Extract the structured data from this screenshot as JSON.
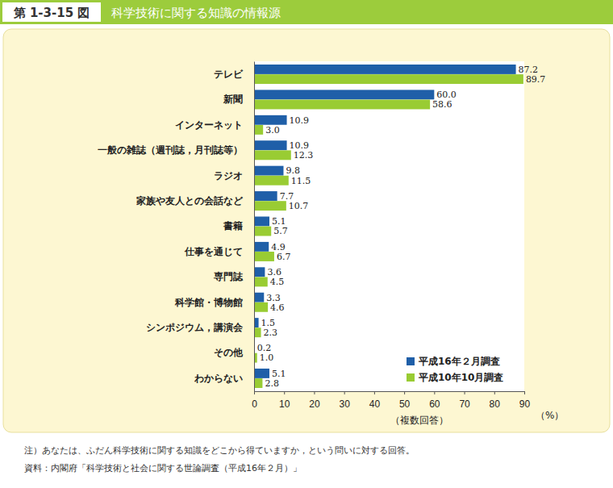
{
  "chart_data": {
    "type": "bar",
    "orientation": "horizontal",
    "title": "科学技術に関する知識の情報源",
    "annotations": {
      "figure": "第 1-3-15 図",
      "x_label": "（複数回答）",
      "unit": "（%）",
      "note": "注）あなたは、ふだん科学技術に関する知識をどこから得ていますか，という問いに対する回答。",
      "source": "資料：内閣府「科学技術と社会に関する世論調査（平成16年２月）」"
    },
    "categories": [
      "テレビ",
      "新聞",
      "インターネット",
      "一般の雑誌（週刊誌，月刊誌等）",
      "ラジオ",
      "家族や友人との会話など",
      "書籍",
      "仕事を通じて",
      "専門誌",
      "科学館・博物館",
      "シンポジウム，講演会",
      "その他",
      "わからない"
    ],
    "series": [
      {
        "name": "平成16年２月調査",
        "color": "#1f5fa8",
        "values": [
          87.2,
          60.0,
          10.9,
          10.9,
          9.8,
          7.7,
          5.1,
          4.9,
          3.6,
          3.3,
          1.5,
          0.2,
          5.1
        ],
        "value_labels": [
          "87.2",
          "60.0",
          "10.9",
          "10.9",
          "9.8",
          "7.7",
          "5.1",
          "4.9",
          "3.6",
          "3.3",
          "1.5",
          "0.2",
          "5.1"
        ]
      },
      {
        "name": "平成10年10月調査",
        "color": "#99cc33",
        "values": [
          89.7,
          58.6,
          3.0,
          12.3,
          11.5,
          10.7,
          5.7,
          6.7,
          4.5,
          4.6,
          2.3,
          1.0,
          2.8
        ],
        "value_labels": [
          "89.7",
          "58.6",
          "3.0",
          "12.3",
          "11.5",
          "10.7",
          "5.7",
          "6.7",
          "4.5",
          "4.6",
          "2.3",
          "1.0",
          "2.8"
        ]
      }
    ],
    "xlim": [
      0,
      90
    ],
    "xticks": [
      0,
      10,
      20,
      30,
      40,
      50,
      60,
      70,
      80,
      90
    ],
    "data_labels": true,
    "legend": "lower right",
    "grid": false
  }
}
